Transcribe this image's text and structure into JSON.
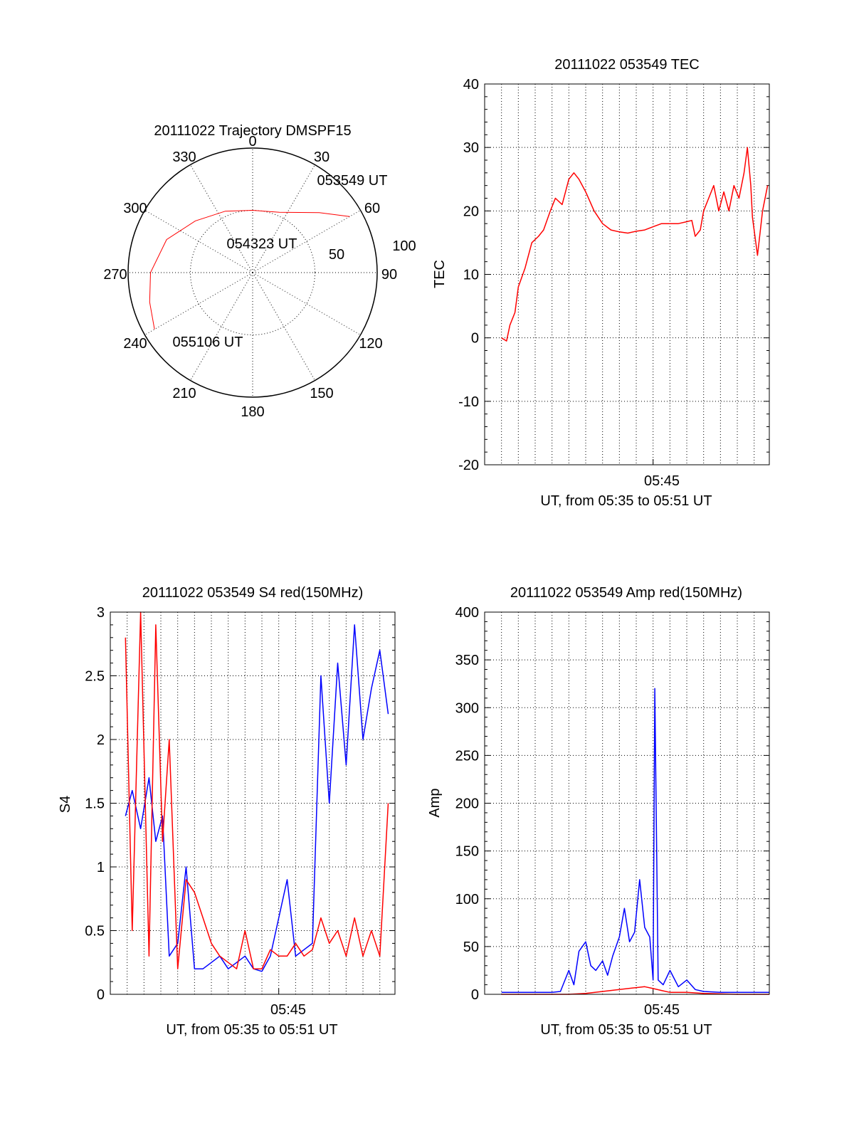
{
  "colors": {
    "red": "#ff0000",
    "blue": "#0000ff",
    "axis": "#000000",
    "grid": "#000000"
  },
  "chart_data": [
    {
      "id": "trajectory",
      "type": "polar",
      "title": "20111022 Trajectory DMSPF15",
      "azimuth_labels": [
        "0",
        "30",
        "60",
        "90",
        "120",
        "150",
        "180",
        "210",
        "240",
        "270",
        "300",
        "330"
      ],
      "radial_ring_labels": [
        "50",
        "100"
      ],
      "radial_max": 100,
      "track": {
        "color": "red",
        "points": [
          {
            "az": 60,
            "r": 90
          },
          {
            "az": 48,
            "r": 72
          },
          {
            "az": 24,
            "r": 53
          },
          {
            "az": 0,
            "r": 50
          },
          {
            "az": -24,
            "r": 54
          },
          {
            "az": -48,
            "r": 62
          },
          {
            "az": -69,
            "r": 74
          },
          {
            "az": -90,
            "r": 82
          },
          {
            "az": -106,
            "r": 86
          },
          {
            "az": -120,
            "r": 91
          }
        ]
      },
      "annotations": [
        {
          "text": "053549 UT"
        },
        {
          "text": "054323 UT"
        },
        {
          "text": "055106 UT"
        }
      ]
    },
    {
      "id": "tec",
      "type": "line",
      "title": "20111022 053549 TEC",
      "ylabel": "TEC",
      "xlabel": "UT, from 05:35 to 05:51 UT",
      "xtick_label": "05:45",
      "ylim": [
        -20,
        40
      ],
      "yticks": [
        "40",
        "30",
        "20",
        "10",
        "0",
        "-10",
        "-20"
      ],
      "x_range_min": [
        35.0,
        51.9
      ],
      "grid": true,
      "series": [
        {
          "color": "red",
          "x": [
            36.0,
            36.3,
            36.5,
            36.8,
            37.0,
            37.4,
            37.8,
            38.2,
            38.5,
            38.9,
            39.2,
            39.6,
            40.0,
            40.3,
            40.6,
            41.0,
            41.5,
            42.0,
            42.5,
            43.0,
            43.5,
            44.0,
            44.5,
            45.0,
            45.5,
            46.0,
            46.5,
            47.0,
            47.3,
            47.5,
            47.8,
            48.0,
            48.3,
            48.6,
            48.9,
            49.2,
            49.5,
            49.8,
            50.1,
            50.4,
            50.6,
            50.8,
            50.9,
            51.2,
            51.5,
            51.8
          ],
          "y": [
            0,
            -0.5,
            2,
            4,
            8,
            11,
            15,
            16,
            17,
            20,
            22,
            21,
            25,
            26,
            25,
            23,
            20,
            18,
            17,
            16.7,
            16.5,
            16.8,
            17,
            17.5,
            18,
            18,
            18,
            18.3,
            18.5,
            16,
            17,
            20,
            22,
            24,
            20,
            23,
            20,
            24,
            22,
            26,
            30,
            24,
            19,
            13,
            20,
            24
          ]
        }
      ]
    },
    {
      "id": "s4",
      "type": "line",
      "title": "20111022 053549 S4 red(150MHz)",
      "ylabel": "S4",
      "xlabel": "UT, from 05:35 to 05:51 UT",
      "xtick_label": "05:45",
      "ylim": [
        0,
        3
      ],
      "yticks": [
        "3",
        "2.5",
        "2",
        "1.5",
        "1",
        "0.5",
        "0"
      ],
      "x_range_min": [
        35.0,
        51.9
      ],
      "grid": true,
      "series": [
        {
          "color": "blue",
          "x": [
            35.9,
            36.3,
            36.8,
            37.3,
            37.7,
            38.1,
            38.5,
            39.0,
            39.5,
            40.0,
            40.5,
            41.0,
            41.5,
            42.0,
            42.5,
            43.0,
            43.5,
            44.0,
            44.5,
            45.0,
            45.5,
            46.0,
            46.5,
            47.0,
            47.5,
            48.0,
            48.5,
            49.0,
            49.5,
            50.0,
            50.5,
            51.0,
            51.5
          ],
          "y": [
            1.4,
            1.6,
            1.3,
            1.7,
            1.2,
            1.4,
            0.3,
            0.4,
            1.0,
            0.2,
            0.2,
            0.25,
            0.3,
            0.2,
            0.25,
            0.3,
            0.2,
            0.18,
            0.3,
            0.6,
            0.9,
            0.3,
            0.35,
            0.4,
            2.5,
            1.5,
            2.6,
            1.8,
            2.9,
            2.0,
            2.4,
            2.7,
            2.2
          ]
        },
        {
          "color": "red",
          "x": [
            35.9,
            36.3,
            36.8,
            37.3,
            37.7,
            38.1,
            38.5,
            39.0,
            39.5,
            40.0,
            40.5,
            41.0,
            41.5,
            42.0,
            42.5,
            43.0,
            43.5,
            44.0,
            44.5,
            45.0,
            45.5,
            46.0,
            46.5,
            47.0,
            47.5,
            48.0,
            48.5,
            49.0,
            49.5,
            50.0,
            50.5,
            51.0,
            51.5
          ],
          "y": [
            2.8,
            0.5,
            3.0,
            0.3,
            2.9,
            1.2,
            2.0,
            0.2,
            0.9,
            0.8,
            0.6,
            0.4,
            0.3,
            0.25,
            0.2,
            0.5,
            0.2,
            0.2,
            0.35,
            0.3,
            0.3,
            0.4,
            0.3,
            0.35,
            0.6,
            0.4,
            0.5,
            0.3,
            0.6,
            0.3,
            0.5,
            0.3,
            1.5
          ]
        }
      ]
    },
    {
      "id": "amp",
      "type": "line",
      "title": "20111022 053549 Amp red(150MHz)",
      "ylabel": "Amp",
      "xlabel": "UT, from 05:35 to 05:51 UT",
      "xtick_label": "05:45",
      "ylim": [
        0,
        400
      ],
      "yticks": [
        "400",
        "350",
        "300",
        "250",
        "200",
        "150",
        "100",
        "50",
        "0"
      ],
      "x_range_min": [
        35.0,
        51.9
      ],
      "grid": true,
      "series": [
        {
          "color": "blue",
          "x": [
            36.0,
            37.0,
            38.0,
            39.0,
            39.5,
            40.0,
            40.3,
            40.6,
            41.0,
            41.3,
            41.6,
            42.0,
            42.3,
            42.6,
            43.0,
            43.3,
            43.6,
            43.9,
            44.2,
            44.5,
            44.8,
            45.0,
            45.1,
            45.3,
            45.6,
            46.0,
            46.5,
            47.0,
            47.5,
            48.0,
            49.0,
            50.0,
            51.0,
            51.9
          ],
          "y": [
            2,
            2,
            2,
            2,
            3,
            25,
            10,
            45,
            55,
            30,
            25,
            35,
            20,
            40,
            60,
            90,
            55,
            65,
            120,
            70,
            60,
            15,
            320,
            15,
            10,
            25,
            8,
            15,
            5,
            3,
            2,
            2,
            2,
            2
          ]
        },
        {
          "color": "red",
          "x": [
            36.0,
            38.0,
            40.0,
            41.0,
            42.0,
            43.0,
            44.0,
            44.5,
            45.0,
            45.5,
            46.0,
            47.0,
            48.0,
            50.0,
            51.9
          ],
          "y": [
            0,
            0,
            0,
            1,
            3,
            5,
            7,
            8,
            6,
            4,
            2,
            2,
            1,
            0,
            0
          ]
        }
      ]
    }
  ]
}
